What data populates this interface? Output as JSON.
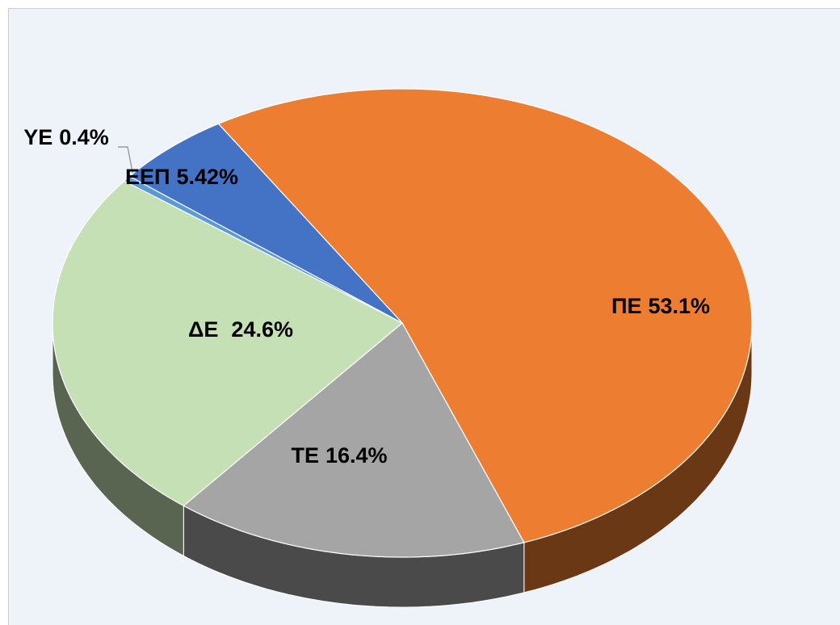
{
  "chart_data": {
    "type": "pie3d",
    "categories": [
      "ΠΕ",
      "ΤΕ",
      "ΔΕ",
      "ΥΕ",
      "ΕΕΠ"
    ],
    "values": [
      53.1,
      16.4,
      24.6,
      0.4,
      5.42
    ],
    "value_labels": [
      "53.1%",
      "16.4%",
      "24.6%",
      "0.4%",
      "5.42%"
    ],
    "colors": [
      "#ED7D31",
      "#A5A5A5",
      "#C5E0B4",
      "#5B9BD5",
      "#4472C4"
    ]
  }
}
